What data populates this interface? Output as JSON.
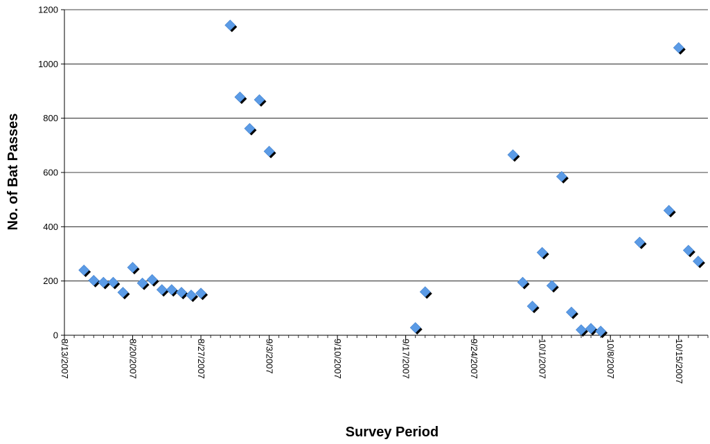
{
  "chart_data": {
    "type": "scatter",
    "title": "",
    "xlabel": "Survey Period",
    "ylabel": "No. of Bat Passes",
    "x_axis_type": "date",
    "xlim": [
      "2007-08-13",
      "2007-10-18"
    ],
    "ylim": [
      0,
      1200
    ],
    "y_ticks": [
      0,
      200,
      400,
      600,
      800,
      1000,
      1200
    ],
    "x_tick_labels": [
      "8/13/2007",
      "8/20/2007",
      "8/27/2007",
      "9/3/2007",
      "9/10/2007",
      "9/17/2007",
      "9/24/2007",
      "10/1/2007",
      "10/8/2007",
      "10/15/2007"
    ],
    "grid": {
      "horizontal": true,
      "vertical": false
    },
    "marker": {
      "shape": "diamond",
      "color": "#5B9BE6",
      "shadow": "#000000"
    },
    "series": [
      {
        "name": "",
        "points": [
          {
            "x": "2007-08-15",
            "y": 240
          },
          {
            "x": "2007-08-16",
            "y": 202
          },
          {
            "x": "2007-08-17",
            "y": 195
          },
          {
            "x": "2007-08-18",
            "y": 195
          },
          {
            "x": "2007-08-19",
            "y": 158
          },
          {
            "x": "2007-08-20",
            "y": 250
          },
          {
            "x": "2007-08-21",
            "y": 192
          },
          {
            "x": "2007-08-22",
            "y": 205
          },
          {
            "x": "2007-08-23",
            "y": 168
          },
          {
            "x": "2007-08-24",
            "y": 168
          },
          {
            "x": "2007-08-25",
            "y": 158
          },
          {
            "x": "2007-08-26",
            "y": 148
          },
          {
            "x": "2007-08-27",
            "y": 155
          },
          {
            "x": "2007-08-30",
            "y": 1143
          },
          {
            "x": "2007-08-31",
            "y": 878
          },
          {
            "x": "2007-09-01",
            "y": 762
          },
          {
            "x": "2007-09-02",
            "y": 868
          },
          {
            "x": "2007-09-03",
            "y": 678
          },
          {
            "x": "2007-09-18",
            "y": 28
          },
          {
            "x": "2007-09-19",
            "y": 160
          },
          {
            "x": "2007-09-28",
            "y": 665
          },
          {
            "x": "2007-09-29",
            "y": 195
          },
          {
            "x": "2007-09-30",
            "y": 107
          },
          {
            "x": "2007-10-01",
            "y": 305
          },
          {
            "x": "2007-10-02",
            "y": 183
          },
          {
            "x": "2007-10-03",
            "y": 585
          },
          {
            "x": "2007-10-04",
            "y": 85
          },
          {
            "x": "2007-10-05",
            "y": 20
          },
          {
            "x": "2007-10-06",
            "y": 25
          },
          {
            "x": "2007-10-07",
            "y": 15
          },
          {
            "x": "2007-10-11",
            "y": 343
          },
          {
            "x": "2007-10-14",
            "y": 460
          },
          {
            "x": "2007-10-15",
            "y": 1060
          },
          {
            "x": "2007-10-16",
            "y": 313
          },
          {
            "x": "2007-10-17",
            "y": 273
          }
        ]
      }
    ]
  }
}
